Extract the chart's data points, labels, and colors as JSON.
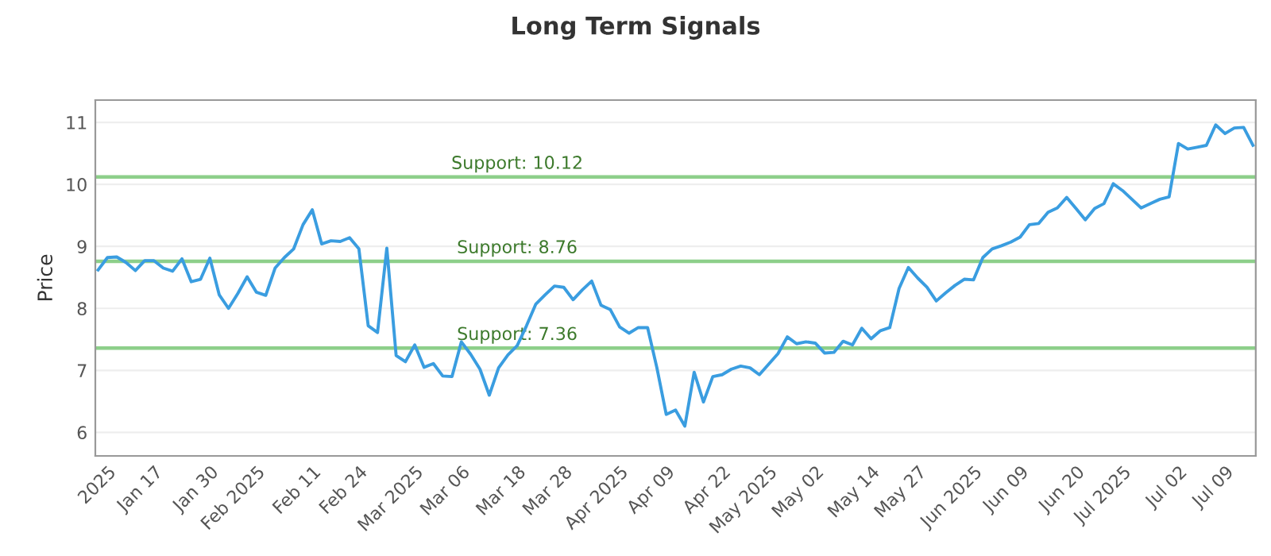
{
  "chart_data": {
    "type": "line",
    "title": "Long Term Signals",
    "ylabel": "Price",
    "categories": [
      null,
      "2025",
      null,
      null,
      null,
      null,
      "Jan 17",
      null,
      null,
      null,
      null,
      null,
      "Jan 30",
      null,
      null,
      null,
      null,
      "Feb 2025",
      null,
      null,
      null,
      null,
      null,
      "Feb 11",
      null,
      null,
      null,
      null,
      "Feb 24",
      null,
      null,
      null,
      null,
      null,
      "Mar 2025",
      null,
      null,
      null,
      null,
      "Mar 06",
      null,
      null,
      null,
      null,
      null,
      "Mar 18",
      null,
      null,
      null,
      null,
      "Mar 28",
      null,
      null,
      null,
      null,
      null,
      "Apr 2025",
      null,
      null,
      null,
      null,
      "Apr 09",
      null,
      null,
      null,
      null,
      null,
      "Apr 22",
      null,
      null,
      null,
      null,
      "May 2025",
      null,
      null,
      null,
      null,
      "May 02",
      null,
      null,
      null,
      null,
      null,
      "May 14",
      null,
      null,
      null,
      null,
      "May 27",
      null,
      null,
      null,
      null,
      null,
      "Jun 2025",
      null,
      null,
      null,
      null,
      "Jun 09",
      null,
      null,
      null,
      null,
      null,
      "Jun 20",
      null,
      null,
      null,
      null,
      "Jul 2025",
      null,
      null,
      null,
      null,
      null,
      "Jul 02",
      null,
      null,
      null,
      null,
      "Jul 09",
      null,
      null,
      null
    ],
    "series": [
      {
        "color": "#3a9de0",
        "values": [
          8.62,
          8.82,
          8.83,
          8.74,
          8.61,
          8.77,
          8.77,
          8.65,
          8.6,
          8.8,
          8.43,
          8.47,
          8.81,
          8.22,
          8.0,
          8.24,
          8.51,
          8.26,
          8.21,
          8.65,
          8.82,
          8.96,
          9.35,
          9.59,
          9.04,
          9.09,
          9.08,
          9.14,
          8.96,
          7.72,
          7.61,
          8.97,
          7.24,
          7.14,
          7.41,
          7.05,
          7.11,
          6.91,
          6.9,
          7.46,
          7.26,
          7.02,
          6.6,
          7.04,
          7.25,
          7.4,
          7.72,
          8.07,
          8.22,
          8.36,
          8.34,
          8.14,
          8.3,
          8.44,
          8.05,
          7.98,
          7.7,
          7.6,
          7.69,
          7.69,
          7.04,
          6.29,
          6.36,
          6.1,
          6.97,
          6.49,
          6.9,
          6.93,
          7.02,
          7.07,
          7.04,
          6.93,
          7.1,
          7.27,
          7.54,
          7.43,
          7.46,
          7.44,
          7.28,
          7.29,
          7.47,
          7.41,
          7.68,
          7.51,
          7.64,
          7.69,
          8.32,
          8.66,
          8.49,
          8.34,
          8.12,
          8.25,
          8.37,
          8.47,
          8.46,
          8.82,
          8.96,
          9.01,
          9.07,
          9.15,
          9.35,
          9.37,
          9.55,
          9.62,
          9.79,
          9.61,
          9.43,
          9.61,
          9.69,
          10.01,
          9.9,
          9.76,
          9.62,
          9.69,
          9.76,
          9.8,
          10.66,
          10.57,
          10.6,
          10.63,
          10.96,
          10.82,
          10.91,
          10.92,
          10.63
        ]
      }
    ],
    "ylim": [
      5.62,
      11.36
    ],
    "yticks": [
      6,
      7,
      8,
      9,
      10,
      11
    ],
    "grid": "y",
    "marker": "none",
    "line_style": "solid",
    "ref_lines": [
      {
        "axis": "y",
        "value": 10.12,
        "label": "Support: 10.12",
        "color": "#8dcf8a"
      },
      {
        "axis": "y",
        "value": 8.76,
        "label": "Support: 8.76",
        "color": "#8dcf8a"
      },
      {
        "axis": "y",
        "value": 7.36,
        "label": "Support: 7.36",
        "color": "#8dcf8a"
      }
    ]
  }
}
